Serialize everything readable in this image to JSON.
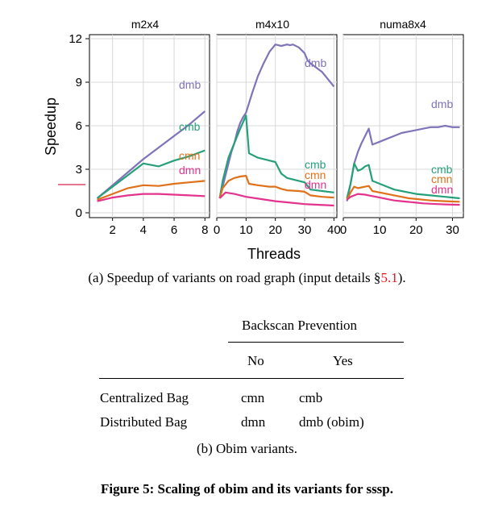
{
  "chart_data": {
    "type": "line",
    "ylabel": "Speedup",
    "xlabel": "Threads",
    "ylim": [
      0,
      12
    ],
    "y_ticks": [
      0,
      3,
      6,
      9,
      12
    ],
    "colors": {
      "dmb": "#7e74b8",
      "cmb": "#26a07a",
      "cmn": "#e0711b",
      "dmn": "#e3338c"
    },
    "panels": [
      {
        "title": "m2x4",
        "xlim": [
          0.5,
          8.3
        ],
        "x_ticks": [
          2,
          4,
          6,
          8
        ],
        "series": [
          {
            "name": "dmb",
            "x": [
              1,
              2,
              3,
              4,
              5,
              6,
              7,
              8
            ],
            "y": [
              1.0,
              1.9,
              2.8,
              3.7,
              4.5,
              5.3,
              6.1,
              7.0
            ]
          },
          {
            "name": "cmb",
            "x": [
              1,
              2,
              3,
              4,
              5,
              6,
              7,
              8
            ],
            "y": [
              1.0,
              1.8,
              2.6,
              3.4,
              3.2,
              3.6,
              3.9,
              4.3
            ]
          },
          {
            "name": "cmn",
            "x": [
              1,
              2,
              3,
              4,
              5,
              6,
              7,
              8
            ],
            "y": [
              0.9,
              1.3,
              1.7,
              1.9,
              1.85,
              2.0,
              2.1,
              2.2
            ]
          },
          {
            "name": "dmn",
            "x": [
              1,
              2,
              3,
              4,
              5,
              6,
              7,
              8
            ],
            "y": [
              0.8,
              1.05,
              1.2,
              1.3,
              1.3,
              1.25,
              1.2,
              1.15
            ]
          }
        ]
      },
      {
        "title": "m4x10",
        "xlim": [
          0,
          41
        ],
        "x_ticks": [
          0,
          10,
          20,
          30,
          40
        ],
        "series": [
          {
            "name": "dmb",
            "x": [
              1,
              2,
              3,
              4,
              5,
              6,
              7,
              8,
              9,
              10,
              12,
              14,
              16,
              18,
              20,
              22,
              24,
              25,
              26,
              28,
              30,
              31,
              32,
              34,
              36,
              38,
              40
            ],
            "y": [
              1.0,
              1.8,
              2.6,
              3.4,
              4.2,
              4.8,
              5.6,
              6.2,
              6.6,
              6.9,
              8.2,
              9.4,
              10.3,
              11.1,
              11.6,
              11.5,
              11.6,
              11.55,
              11.6,
              11.4,
              11.0,
              10.5,
              10.3,
              10.0,
              9.7,
              9.2,
              8.7
            ]
          },
          {
            "name": "cmb",
            "x": [
              1,
              2,
              4,
              6,
              8,
              10,
              11,
              14,
              18,
              20,
              22,
              24,
              28,
              30,
              32,
              36,
              40
            ],
            "y": [
              1.0,
              2.2,
              3.8,
              4.8,
              5.8,
              6.7,
              4.1,
              3.8,
              3.6,
              3.5,
              2.7,
              2.4,
              2.2,
              2.1,
              1.6,
              1.5,
              1.4
            ]
          },
          {
            "name": "cmn",
            "x": [
              1,
              2,
              4,
              6,
              8,
              10,
              11,
              14,
              18,
              20,
              22,
              24,
              28,
              30,
              32,
              36,
              40
            ],
            "y": [
              1.0,
              1.7,
              2.2,
              2.4,
              2.5,
              2.55,
              2.0,
              1.9,
              1.8,
              1.8,
              1.65,
              1.55,
              1.5,
              1.45,
              1.2,
              1.1,
              1.05
            ]
          },
          {
            "name": "dmn",
            "x": [
              1,
              3,
              6,
              10,
              15,
              20,
              25,
              30,
              35,
              40
            ],
            "y": [
              1.0,
              1.4,
              1.3,
              1.1,
              0.95,
              0.8,
              0.7,
              0.6,
              0.55,
              0.5
            ]
          }
        ]
      },
      {
        "title": "numa8x4",
        "xlim": [
          0,
          33
        ],
        "x_ticks": [
          0,
          10,
          20,
          30
        ],
        "series": [
          {
            "name": "dmb",
            "x": [
              1,
              2,
              3,
              4,
              5,
              6,
              7,
              8,
              9,
              10,
              12,
              14,
              16,
              18,
              20,
              22,
              24,
              26,
              28,
              30,
              32
            ],
            "y": [
              0.8,
              2.0,
              3.4,
              4.2,
              4.8,
              5.3,
              5.8,
              4.7,
              4.8,
              4.9,
              5.1,
              5.3,
              5.5,
              5.6,
              5.7,
              5.8,
              5.9,
              5.9,
              6.0,
              5.9,
              5.9
            ]
          },
          {
            "name": "cmb",
            "x": [
              1,
              2,
              3,
              4,
              5,
              6,
              7,
              8,
              10,
              12,
              14,
              16,
              18,
              20,
              22,
              24,
              26,
              28,
              30,
              32
            ],
            "y": [
              1.0,
              2.0,
              3.4,
              2.9,
              3.0,
              3.2,
              3.3,
              2.2,
              2.0,
              1.8,
              1.6,
              1.5,
              1.4,
              1.3,
              1.25,
              1.2,
              1.15,
              1.1,
              1.05,
              1.0
            ]
          },
          {
            "name": "cmn",
            "x": [
              1,
              2,
              3,
              4,
              5,
              6,
              7,
              8,
              10,
              12,
              14,
              16,
              18,
              20,
              22,
              24,
              26,
              28,
              30,
              32
            ],
            "y": [
              0.9,
              1.4,
              1.8,
              1.7,
              1.75,
              1.8,
              1.85,
              1.5,
              1.4,
              1.3,
              1.2,
              1.1,
              1.0,
              0.95,
              0.9,
              0.85,
              0.82,
              0.8,
              0.78,
              0.76
            ]
          },
          {
            "name": "dmn",
            "x": [
              1,
              2,
              4,
              6,
              8,
              10,
              12,
              14,
              16,
              18,
              20,
              22,
              24,
              26,
              28,
              30,
              32
            ],
            "y": [
              0.9,
              1.1,
              1.3,
              1.25,
              1.15,
              1.05,
              0.95,
              0.85,
              0.8,
              0.75,
              0.7,
              0.65,
              0.62,
              0.6,
              0.58,
              0.56,
              0.55
            ]
          }
        ]
      }
    ]
  },
  "captions": {
    "sub_a_text": "(a) Speedup of variants on road graph (input details §",
    "sub_a_ref": "5.1",
    "sub_a_end": ").",
    "sub_b": "(b) Obim variants.",
    "figure": "Figure 5: Scaling of obim and its variants for sssp."
  },
  "table": {
    "group_header": "Backscan Prevention",
    "col_no": "No",
    "col_yes": "Yes",
    "rows": [
      {
        "label": "Centralized Bag",
        "no": "cmn",
        "yes": "cmb"
      },
      {
        "label": "Distributed Bag",
        "no": "dmn",
        "yes": "dmb (obim)"
      }
    ]
  }
}
